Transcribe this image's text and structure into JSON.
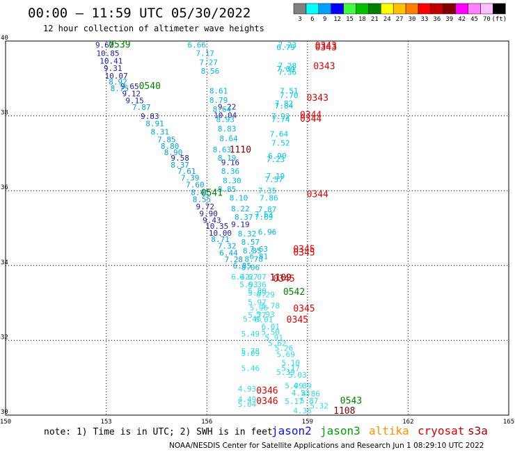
{
  "title": "00:00 – 11:59 UTC 05/30/2022",
  "subtitle": "12 hour collection of altimeter wave heights",
  "note": "note: 1) Time is in UTC; 2) SWH is in feet",
  "credit": "NOAA/NESDIS Center for Satellite Applications and Research   Jun  1 08:29:10 UTC 2022",
  "colorbar": {
    "labels": [
      "3",
      "6",
      "9",
      "12",
      "15",
      "18",
      "21",
      "24",
      "27",
      "30",
      "33",
      "36",
      "39",
      "42",
      "45",
      "70",
      "(ft)"
    ],
    "colors": [
      "#808080",
      "#00ffff",
      "#00a0ff",
      "#0000ff",
      "#40ff40",
      "#00c000",
      "#008000",
      "#ffff00",
      "#ffc000",
      "#ff8000",
      "#ff0000",
      "#c00000",
      "#800000",
      "#ff00ff",
      "#ff80ff",
      "#ffc0ff",
      "#000000"
    ]
  },
  "legend": [
    {
      "name": "jason2",
      "color": "#1010e0"
    },
    {
      "name": "jason3",
      "color": "#00a000"
    },
    {
      "name": "altika",
      "color": "#ff9000"
    },
    {
      "name": "cryosat",
      "color": "#e00000"
    },
    {
      "name": "s3a",
      "color": "#a00000"
    }
  ],
  "chart_data": {
    "type": "scatter",
    "xlim": [
      150,
      165
    ],
    "ylim": [
      30,
      40
    ],
    "xticks": [
      "150",
      "153",
      "156",
      "159",
      "162",
      "165"
    ],
    "yticks": [
      "30",
      "32",
      "34",
      "36",
      "38",
      "40"
    ],
    "grid": true,
    "pass_labels": [
      {
        "text": "0539",
        "x": 153.4,
        "y": 39.82,
        "color": "#008000"
      },
      {
        "text": "0540",
        "x": 154.3,
        "y": 38.72,
        "color": "#008000"
      },
      {
        "text": "0541",
        "x": 156.15,
        "y": 35.86,
        "color": "#008000"
      },
      {
        "text": "0542",
        "x": 158.6,
        "y": 33.22,
        "color": "#008000"
      },
      {
        "text": "0543",
        "x": 160.3,
        "y": 30.31,
        "color": "#008000"
      },
      {
        "text": "1110",
        "x": 157.0,
        "y": 37.02,
        "color": "#800000"
      },
      {
        "text": "1109",
        "x": 158.2,
        "y": 33.6,
        "color": "#800000"
      },
      {
        "text": "1108",
        "x": 160.1,
        "y": 30.04,
        "color": "#800000"
      },
      {
        "text": "0343",
        "x": 159.55,
        "y": 39.8,
        "color": "#e00000"
      },
      {
        "text": "0343",
        "x": 159.55,
        "y": 39.75,
        "color": "#e00000"
      },
      {
        "text": "0343",
        "x": 159.5,
        "y": 39.25,
        "color": "#e00000"
      },
      {
        "text": "0343",
        "x": 159.3,
        "y": 38.4,
        "color": "#e00000"
      },
      {
        "text": "0344",
        "x": 159.1,
        "y": 37.95,
        "color": "#e00000"
      },
      {
        "text": "0344",
        "x": 159.1,
        "y": 37.84,
        "color": "#e00000"
      },
      {
        "text": "0344",
        "x": 159.3,
        "y": 35.83,
        "color": "#e00000"
      },
      {
        "text": "0345",
        "x": 158.9,
        "y": 34.36,
        "color": "#e00000"
      },
      {
        "text": "0345",
        "x": 158.9,
        "y": 34.27,
        "color": "#e00000"
      },
      {
        "text": "0345",
        "x": 158.3,
        "y": 33.57,
        "color": "#e00000"
      },
      {
        "text": "0345",
        "x": 158.9,
        "y": 32.77,
        "color": "#e00000"
      },
      {
        "text": "0345",
        "x": 158.7,
        "y": 32.47,
        "color": "#e00000"
      },
      {
        "text": "0346",
        "x": 157.8,
        "y": 30.58,
        "color": "#e00000"
      },
      {
        "text": "0346",
        "x": 157.8,
        "y": 30.3,
        "color": "#e00000"
      }
    ],
    "series": [
      {
        "name": "track-jason2",
        "color": "#1a1aa0",
        "points": [
          {
            "x": 152.95,
            "y": 39.82,
            "v": "9.62"
          },
          {
            "x": 153.05,
            "y": 39.6,
            "v": "10.85"
          },
          {
            "x": 153.15,
            "y": 39.4,
            "v": "10.41"
          },
          {
            "x": 153.2,
            "y": 39.2,
            "v": "9.31"
          },
          {
            "x": 153.3,
            "y": 39.0,
            "v": "10.07"
          },
          {
            "x": 153.7,
            "y": 38.72,
            "v": "9.65"
          },
          {
            "x": 153.75,
            "y": 38.52,
            "v": "9.12"
          },
          {
            "x": 153.85,
            "y": 38.34,
            "v": "9.15"
          },
          {
            "x": 154.3,
            "y": 37.92,
            "v": "9.83"
          },
          {
            "x": 155.2,
            "y": 36.8,
            "v": "9.58"
          },
          {
            "x": 155.95,
            "y": 35.5,
            "v": "9.72"
          },
          {
            "x": 156.05,
            "y": 35.32,
            "v": "9.90"
          },
          {
            "x": 156.15,
            "y": 35.14,
            "v": "9.43"
          },
          {
            "x": 156.3,
            "y": 34.98,
            "v": "10.35"
          },
          {
            "x": 156.4,
            "y": 34.8,
            "v": "10.00"
          },
          {
            "x": 157.0,
            "y": 35.03,
            "v": "9.19"
          },
          {
            "x": 156.7,
            "y": 36.68,
            "v": "9.16"
          },
          {
            "x": 156.6,
            "y": 38.17,
            "v": "9.22"
          },
          {
            "x": 156.55,
            "y": 37.95,
            "v": "10.04"
          }
        ]
      },
      {
        "name": "track-a",
        "color": "#00a0e0",
        "points": [
          {
            "x": 153.35,
            "y": 38.84,
            "v": "8.92"
          },
          {
            "x": 153.4,
            "y": 38.66,
            "v": "8.75"
          },
          {
            "x": 154.05,
            "y": 38.16,
            "v": "7.87"
          },
          {
            "x": 154.45,
            "y": 37.72,
            "v": "8.91"
          },
          {
            "x": 154.6,
            "y": 37.5,
            "v": "8.31"
          },
          {
            "x": 154.8,
            "y": 37.3,
            "v": "7.85"
          },
          {
            "x": 154.9,
            "y": 37.12,
            "v": "8.80"
          },
          {
            "x": 155.0,
            "y": 36.95,
            "v": "8.90"
          },
          {
            "x": 155.2,
            "y": 36.62,
            "v": "8.37"
          },
          {
            "x": 155.4,
            "y": 36.45,
            "v": "7.61"
          },
          {
            "x": 155.5,
            "y": 36.27,
            "v": "7.39"
          },
          {
            "x": 155.65,
            "y": 36.09,
            "v": "7.60"
          },
          {
            "x": 155.8,
            "y": 35.88,
            "v": "8.41"
          },
          {
            "x": 155.85,
            "y": 35.7,
            "v": "8.55"
          },
          {
            "x": 156.4,
            "y": 34.63,
            "v": "8.71"
          },
          {
            "x": 156.6,
            "y": 34.45,
            "v": "7.32"
          },
          {
            "x": 156.65,
            "y": 34.27,
            "v": "6.44"
          },
          {
            "x": 156.8,
            "y": 34.09,
            "v": "7.28"
          },
          {
            "x": 157.05,
            "y": 33.92,
            "v": "6.85"
          }
        ]
      },
      {
        "name": "track-b",
        "color": "#00b4e6",
        "points": [
          {
            "x": 155.7,
            "y": 39.82,
            "v": "6.66"
          },
          {
            "x": 155.95,
            "y": 39.6,
            "v": "7.17"
          },
          {
            "x": 156.05,
            "y": 39.36,
            "v": "7.27"
          },
          {
            "x": 156.1,
            "y": 39.13,
            "v": "8.56"
          },
          {
            "x": 156.35,
            "y": 38.6,
            "v": "8.61"
          },
          {
            "x": 156.35,
            "y": 38.35,
            "v": "8.79"
          },
          {
            "x": 156.45,
            "y": 38.1,
            "v": "8.64"
          },
          {
            "x": 156.55,
            "y": 37.83,
            "v": "8.93"
          },
          {
            "x": 156.6,
            "y": 37.58,
            "v": "8.83"
          },
          {
            "x": 156.65,
            "y": 37.32,
            "v": "8.64"
          },
          {
            "x": 156.45,
            "y": 37.03,
            "v": "8.63"
          },
          {
            "x": 156.6,
            "y": 36.8,
            "v": "8.19"
          },
          {
            "x": 156.7,
            "y": 36.45,
            "v": "8.36"
          },
          {
            "x": 156.75,
            "y": 36.2,
            "v": "8.30"
          },
          {
            "x": 156.6,
            "y": 35.97,
            "v": "8.85"
          },
          {
            "x": 156.95,
            "y": 35.73,
            "v": "8.10"
          },
          {
            "x": 157.0,
            "y": 35.45,
            "v": "8.22"
          },
          {
            "x": 157.1,
            "y": 35.22,
            "v": "8.37"
          },
          {
            "x": 157.2,
            "y": 34.78,
            "v": "8.32"
          },
          {
            "x": 157.3,
            "y": 34.55,
            "v": "8.57"
          },
          {
            "x": 157.35,
            "y": 34.32,
            "v": "8.85"
          },
          {
            "x": 157.55,
            "y": 34.37,
            "v": "7.63"
          },
          {
            "x": 157.4,
            "y": 34.1,
            "v": "8.78"
          },
          {
            "x": 157.3,
            "y": 33.88,
            "v": "8.06"
          },
          {
            "x": 157.55,
            "y": 34.17,
            "v": "6.81"
          },
          {
            "x": 157.8,
            "y": 34.82,
            "v": "6.96"
          }
        ]
      },
      {
        "name": "track-c",
        "color": "#00c8e6",
        "points": [
          {
            "x": 158.4,
            "y": 39.82,
            "v": "7.23"
          },
          {
            "x": 158.35,
            "y": 39.76,
            "v": "6.79"
          },
          {
            "x": 158.4,
            "y": 39.27,
            "v": "7.28"
          },
          {
            "x": 158.35,
            "y": 39.18,
            "v": "7.09"
          },
          {
            "x": 158.4,
            "y": 39.1,
            "v": "7.36"
          },
          {
            "x": 158.45,
            "y": 38.6,
            "v": "7.51"
          },
          {
            "x": 158.45,
            "y": 38.48,
            "v": "7.70"
          },
          {
            "x": 158.3,
            "y": 38.26,
            "v": "7.82"
          },
          {
            "x": 158.3,
            "y": 38.2,
            "v": "7.84"
          },
          {
            "x": 158.2,
            "y": 37.92,
            "v": "7.92"
          },
          {
            "x": 158.2,
            "y": 37.83,
            "v": "7.74"
          },
          {
            "x": 158.15,
            "y": 37.44,
            "v": "7.64"
          },
          {
            "x": 158.2,
            "y": 37.2,
            "v": "7.52"
          },
          {
            "x": 158.1,
            "y": 36.86,
            "v": "6.90"
          },
          {
            "x": 158.05,
            "y": 36.77,
            "v": "7.23"
          },
          {
            "x": 158.05,
            "y": 36.32,
            "v": "7.19"
          },
          {
            "x": 158.0,
            "y": 36.23,
            "v": "7.57"
          },
          {
            "x": 157.8,
            "y": 35.93,
            "v": "7.35"
          },
          {
            "x": 157.85,
            "y": 35.73,
            "v": "7.86"
          },
          {
            "x": 157.8,
            "y": 35.43,
            "v": "7.87"
          },
          {
            "x": 157.7,
            "y": 35.3,
            "v": "7.63"
          },
          {
            "x": 157.7,
            "y": 35.22,
            "v": "7.69"
          }
        ]
      },
      {
        "name": "track-d",
        "color": "#30d8e8",
        "points": [
          {
            "x": 157.0,
            "y": 33.62,
            "v": "6.42"
          },
          {
            "x": 157.25,
            "y": 33.62,
            "v": "6.27"
          },
          {
            "x": 157.5,
            "y": 33.62,
            "v": "6.07"
          },
          {
            "x": 157.25,
            "y": 33.42,
            "v": "5.93"
          },
          {
            "x": 157.5,
            "y": 33.42,
            "v": "6.36"
          },
          {
            "x": 157.5,
            "y": 33.25,
            "v": "5.80"
          },
          {
            "x": 157.5,
            "y": 33.2,
            "v": "5.59"
          },
          {
            "x": 157.75,
            "y": 33.15,
            "v": "6.29"
          },
          {
            "x": 157.5,
            "y": 32.95,
            "v": "5.97"
          },
          {
            "x": 157.55,
            "y": 32.8,
            "v": "5.96"
          },
          {
            "x": 157.9,
            "y": 32.85,
            "v": "5.78"
          },
          {
            "x": 157.5,
            "y": 32.6,
            "v": "5.77"
          },
          {
            "x": 157.75,
            "y": 32.62,
            "v": "5.93"
          },
          {
            "x": 157.35,
            "y": 32.5,
            "v": "5.46"
          },
          {
            "x": 157.7,
            "y": 32.48,
            "v": "6.01"
          },
          {
            "x": 157.9,
            "y": 32.3,
            "v": "6.01"
          },
          {
            "x": 157.9,
            "y": 32.15,
            "v": "5.50"
          },
          {
            "x": 157.3,
            "y": 32.1,
            "v": "5.49"
          },
          {
            "x": 158.0,
            "y": 32.0,
            "v": "5.91"
          },
          {
            "x": 158.1,
            "y": 31.85,
            "v": "5.62"
          },
          {
            "x": 158.3,
            "y": 31.72,
            "v": "5.26"
          },
          {
            "x": 158.35,
            "y": 31.55,
            "v": "5.69"
          },
          {
            "x": 157.3,
            "y": 31.64,
            "v": "5.78"
          },
          {
            "x": 157.3,
            "y": 31.58,
            "v": "5.09"
          },
          {
            "x": 158.5,
            "y": 31.33,
            "v": "5.10"
          },
          {
            "x": 157.3,
            "y": 31.18,
            "v": "5.46"
          },
          {
            "x": 158.5,
            "y": 31.18,
            "v": "5.17"
          },
          {
            "x": 158.35,
            "y": 31.08,
            "v": "5.39"
          },
          {
            "x": 158.7,
            "y": 31.0,
            "v": "5.03"
          },
          {
            "x": 158.6,
            "y": 30.72,
            "v": "5.09"
          },
          {
            "x": 158.85,
            "y": 30.72,
            "v": "4.89"
          },
          {
            "x": 158.8,
            "y": 30.52,
            "v": "4.53"
          },
          {
            "x": 159.1,
            "y": 30.5,
            "v": "4.86"
          },
          {
            "x": 158.6,
            "y": 30.3,
            "v": "5.17"
          },
          {
            "x": 159.05,
            "y": 30.32,
            "v": "5.87"
          },
          {
            "x": 159.35,
            "y": 30.18,
            "v": "5.32"
          },
          {
            "x": 158.85,
            "y": 30.05,
            "v": "4.36"
          },
          {
            "x": 157.2,
            "y": 30.63,
            "v": "4.93"
          },
          {
            "x": 157.2,
            "y": 30.35,
            "v": "4.49"
          },
          {
            "x": 157.2,
            "y": 30.22,
            "v": "5.04"
          }
        ]
      }
    ]
  }
}
